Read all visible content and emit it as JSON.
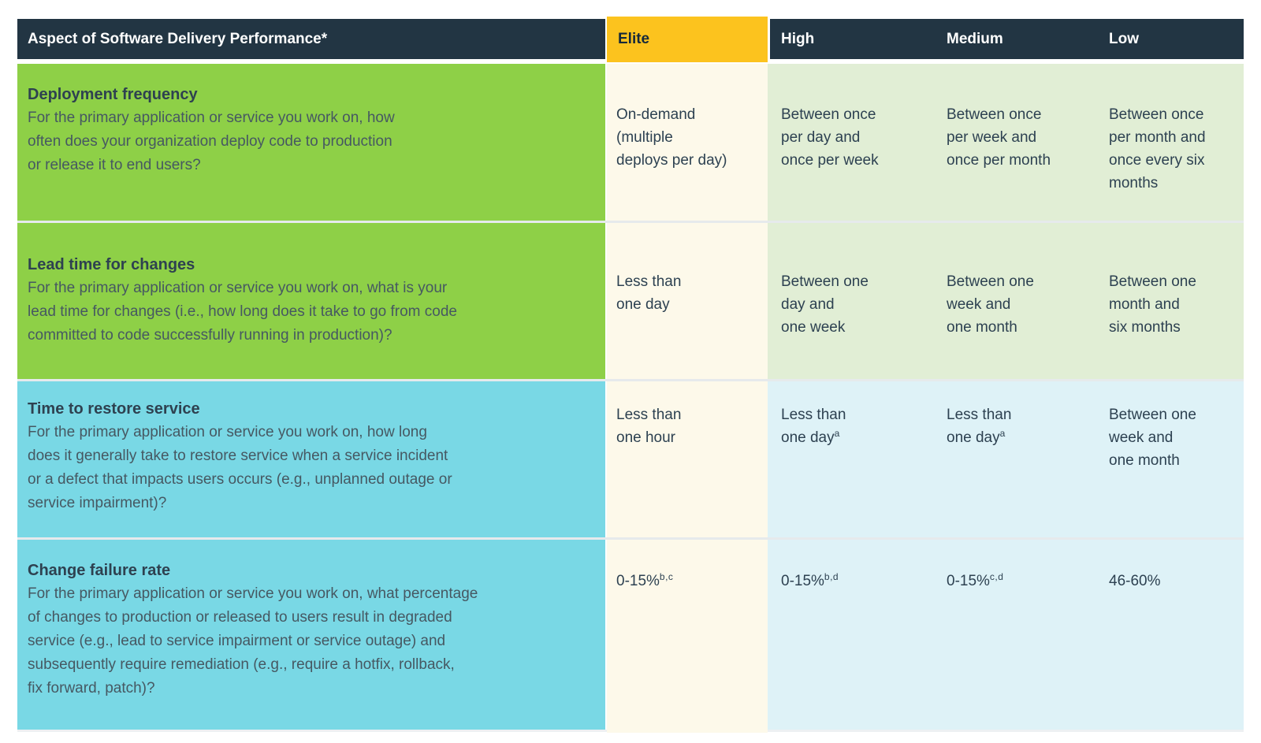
{
  "chart_data": {
    "type": "table",
    "columns": [
      "Aspect of Software Delivery Performance*",
      "Elite",
      "High",
      "Medium",
      "Low"
    ],
    "rows": [
      {
        "title": "Deployment frequency",
        "description": "For the primary application or service you work on, how\noften does your organization deploy code to production\nor release it to end users?",
        "cells": [
          {
            "text": "On-demand\n(multiple\ndeploys per day)",
            "sup": ""
          },
          {
            "text": "Between once\nper day and\nonce per week",
            "sup": ""
          },
          {
            "text": "Between once\nper week and\nonce per month",
            "sup": ""
          },
          {
            "text": "Between once\nper month and\nonce every six\nmonths",
            "sup": ""
          }
        ]
      },
      {
        "title": "Lead time for changes",
        "description": "For the primary application or service you work on, what is your\nlead time for changes (i.e., how long does it take to go from code\ncommitted to code successfully running in production)?",
        "cells": [
          {
            "text": "Less than\none day",
            "sup": ""
          },
          {
            "text": "Between one\nday and\none week",
            "sup": ""
          },
          {
            "text": "Between one\nweek and\none month",
            "sup": ""
          },
          {
            "text": "Between one\nmonth and\nsix months",
            "sup": ""
          }
        ]
      },
      {
        "title": "Time to restore service",
        "description": "For the primary application or service you work on, how long\ndoes it generally take to restore service when a service incident\nor a defect that impacts users occurs (e.g., unplanned outage or\nservice impairment)?",
        "cells": [
          {
            "text": "Less than\none hour",
            "sup": ""
          },
          {
            "text": "Less than\none day",
            "sup": "a"
          },
          {
            "text": "Less than\none day",
            "sup": "a"
          },
          {
            "text": "Between one\nweek and\none month",
            "sup": ""
          }
        ]
      },
      {
        "title": "Change failure rate",
        "description": "For the primary application or service you work on, what percentage\nof changes to production or released to users result in degraded\nservice (e.g., lead to service impairment or service outage) and\nsubsequently require remediation (e.g., require a hotfix, rollback,\nfix forward, patch)?",
        "cells": [
          {
            "text": "0-15%",
            "sup": "b,c"
          },
          {
            "text": "0-15%",
            "sup": "b,d"
          },
          {
            "text": "0-15%",
            "sup": "c,d"
          },
          {
            "text": "46-60%",
            "sup": ""
          }
        ]
      }
    ],
    "colors": {
      "header_navy": "#223543",
      "elite_yellow": "#fcc31e",
      "aspect_green": "#8ed047",
      "aspect_teal": "#79d8e5",
      "elite_cream": "#fdf9ea",
      "values_light_green": "#e1eed5",
      "values_light_blue": "#def2f7",
      "row_separator": "#e6eaec",
      "header_text": "#ffffff",
      "elite_header_text": "#16293a",
      "title_text": "#2e4150",
      "description_text": "#465862",
      "value_text": "#2d4151"
    }
  }
}
